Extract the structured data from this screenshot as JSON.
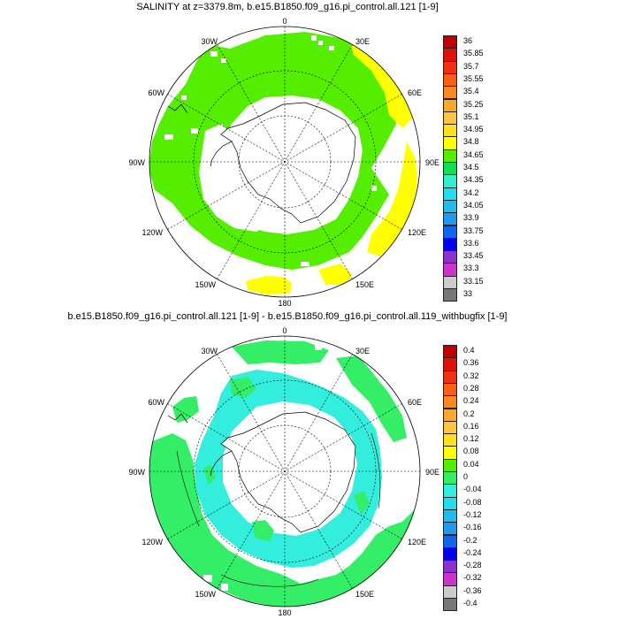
{
  "panels": [
    {
      "title": "SALINITY at z=3379.8m, b.e15.B1850.f09_g16.pi_control.all.121 [1-9]",
      "lon_labels": [
        "0",
        "30E",
        "60E",
        "90E",
        "120E",
        "150E",
        "180",
        "150W",
        "120W",
        "90W",
        "60W",
        "30W"
      ],
      "colorbar": {
        "labels": [
          "36",
          "35.85",
          "35.7",
          "35.55",
          "35.4",
          "35.25",
          "35.1",
          "34.95",
          "34.8",
          "34.65",
          "34.5",
          "34.35",
          "34.2",
          "34.05",
          "33.9",
          "33.75",
          "33.6",
          "33.45",
          "33.3",
          "33.15",
          "33"
        ],
        "colors": [
          "#c00000",
          "#e0100a",
          "#f03010",
          "#f86018",
          "#fa8a20",
          "#fca830",
          "#fdc440",
          "#ffe020",
          "#ffff00",
          "#55ee00",
          "#11dd55",
          "#33eecc",
          "#22ddee",
          "#22bbee",
          "#2299ee",
          "#1166ee",
          "#0000ee",
          "#8833cc",
          "#cc33cc",
          "#cccccc",
          "#777777"
        ]
      },
      "regions": [
        {
          "name": "green-west-band",
          "color": "#55ee00"
        },
        {
          "name": "yellow-indian-sector",
          "color": "#ffff00"
        },
        {
          "name": "yellow-pacific-patches",
          "color": "#ffff00"
        }
      ]
    },
    {
      "title": "b.e15.B1850.f09_g16.pi_control.all.121 [1-9] - b.e15.B1850.f09_g16.pi_control.all.119_withbugfix [1-9]",
      "lon_labels": [
        "0",
        "30E",
        "60E",
        "90E",
        "120E",
        "150E",
        "180",
        "150W",
        "120W",
        "90W",
        "60W",
        "30W"
      ],
      "colorbar": {
        "labels": [
          "0.4",
          "0.36",
          "0.32",
          "0.28",
          "0.24",
          "0.2",
          "0.16",
          "0.12",
          "0.08",
          "0.04",
          "0",
          "-0.04",
          "-0.08",
          "-0.12",
          "-0.16",
          "-0.2",
          "-0.24",
          "-0.28",
          "-0.32",
          "-0.36",
          "-0.4"
        ],
        "colors": [
          "#c00000",
          "#e0100a",
          "#f03010",
          "#f86018",
          "#fa8a20",
          "#fca830",
          "#fdc440",
          "#ffe020",
          "#ffff00",
          "#55ee00",
          "#33ee66",
          "#33eedd",
          "#22ddee",
          "#22bbee",
          "#2299ee",
          "#1166ee",
          "#0000ee",
          "#8833cc",
          "#cc33cc",
          "#cccccc",
          "#777777"
        ]
      },
      "regions": [
        {
          "name": "green-positive",
          "color": "#33ee66"
        },
        {
          "name": "cyan-negative",
          "color": "#33eedd"
        }
      ]
    }
  ]
}
